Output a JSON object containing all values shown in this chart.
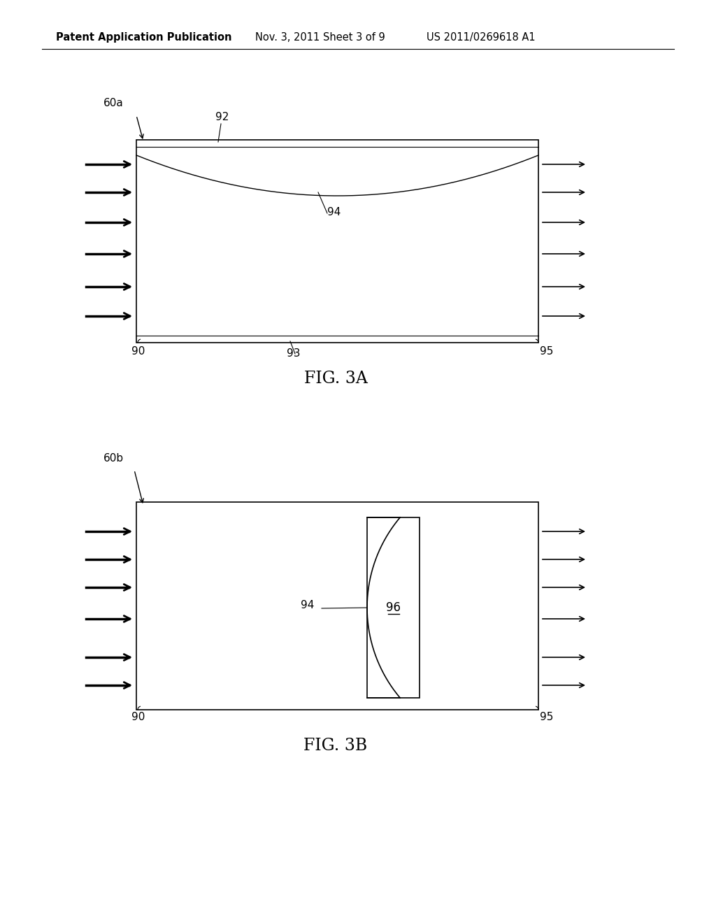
{
  "bg_color": "#ffffff",
  "header_text": "Patent Application Publication",
  "header_date": "Nov. 3, 2011",
  "header_sheet": "Sheet 3 of 9",
  "header_patent": "US 2011/0269618 A1",
  "fig3a_label": "FIG. 3A",
  "fig3b_label": "FIG. 3B",
  "label_60a": "60a",
  "label_60b": "60b",
  "label_90_a": "90",
  "label_90_b": "90",
  "label_92": "92",
  "label_93": "93",
  "label_94_a": "94",
  "label_94_b": "94",
  "label_95_a": "95",
  "label_95_b": "95",
  "label_96": "96"
}
